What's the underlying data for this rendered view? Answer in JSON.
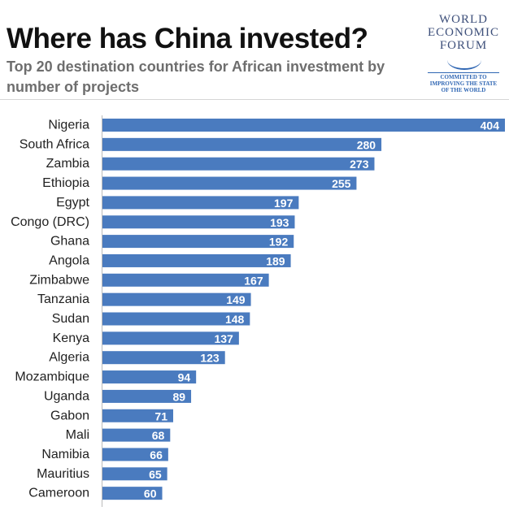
{
  "header": {
    "title": "Where has China invested?",
    "subtitle": "Top 20 destination countries for African investment by number of projects"
  },
  "logo": {
    "lines": [
      "WORLD",
      "ECONOMIC",
      "FORUM"
    ],
    "tagline": [
      "COMMITTED TO",
      "IMPROVING THE STATE",
      "OF THE WORLD"
    ],
    "color": "#2f66b3"
  },
  "chart_data": {
    "type": "bar",
    "orientation": "horizontal",
    "title": "Where has China invested?",
    "subtitle": "Top 20 destination countries for African investment by number of projects",
    "categories": [
      "Nigeria",
      "South Africa",
      "Zambia",
      "Ethiopia",
      "Egypt",
      "Congo (DRC)",
      "Ghana",
      "Angola",
      "Zimbabwe",
      "Tanzania",
      "Sudan",
      "Kenya",
      "Algeria",
      "Mozambique",
      "Uganda",
      "Gabon",
      "Mali",
      "Namibia",
      "Mauritius",
      "Cameroon"
    ],
    "values": [
      404,
      280,
      273,
      255,
      197,
      193,
      192,
      189,
      167,
      149,
      148,
      137,
      123,
      94,
      89,
      71,
      68,
      66,
      65,
      60
    ],
    "xlim": [
      0,
      404
    ],
    "grid": false,
    "legend": "none",
    "data_labels": "inside-end",
    "bar_color": "#4a7bbf"
  }
}
